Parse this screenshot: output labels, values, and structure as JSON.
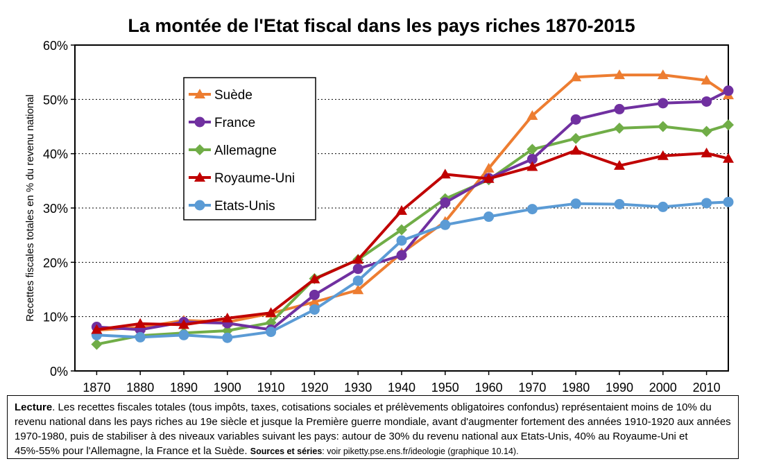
{
  "chart_data": {
    "type": "line",
    "title": "La montée de l'Etat fiscal dans les pays riches 1870-2015",
    "ylabel": "Recettes fiscales totales en % du revenu national",
    "xlabel": "",
    "xlim": [
      1870,
      2015
    ],
    "ylim": [
      0,
      60
    ],
    "xticks": [
      "1870",
      "1880",
      "1890",
      "1900",
      "1910",
      "1920",
      "1930",
      "1940",
      "1950",
      "1960",
      "1970",
      "1980",
      "1990",
      "2000",
      "2010"
    ],
    "yticks": [
      "0%",
      "10%",
      "20%",
      "30%",
      "40%",
      "50%",
      "60%"
    ],
    "grid": "horizontal",
    "legend_position": "upper-left (inside plot)",
    "series": [
      {
        "name": "Suède",
        "color": "#ED7D31",
        "marker": "triangle",
        "points": [
          [
            1870,
            7.5
          ],
          [
            1880,
            8.0
          ],
          [
            1890,
            9.3
          ],
          [
            1900,
            9.0
          ],
          [
            1910,
            10.6
          ],
          [
            1920,
            12.7
          ],
          [
            1930,
            14.9
          ],
          [
            1940,
            21.7
          ],
          [
            1950,
            27.5
          ],
          [
            1960,
            37.3
          ],
          [
            1970,
            47.0
          ],
          [
            1980,
            54.1
          ],
          [
            1990,
            54.5
          ],
          [
            2000,
            54.5
          ],
          [
            2010,
            53.5
          ],
          [
            2015,
            50.8
          ]
        ]
      },
      {
        "name": "France",
        "color": "#7030A0",
        "marker": "circle",
        "points": [
          [
            1870,
            8.1
          ],
          [
            1880,
            7.6
          ],
          [
            1890,
            9.0
          ],
          [
            1900,
            8.8
          ],
          [
            1910,
            7.6
          ],
          [
            1920,
            14.0
          ],
          [
            1930,
            18.8
          ],
          [
            1940,
            21.3
          ],
          [
            1950,
            31.0
          ],
          [
            1960,
            35.5
          ],
          [
            1970,
            39.0
          ],
          [
            1980,
            46.3
          ],
          [
            1990,
            48.2
          ],
          [
            2000,
            49.3
          ],
          [
            2010,
            49.6
          ],
          [
            2015,
            51.6
          ]
        ]
      },
      {
        "name": "Allemagne",
        "color": "#70AD47",
        "marker": "diamond",
        "points": [
          [
            1870,
            4.9
          ],
          [
            1880,
            6.5
          ],
          [
            1890,
            7.0
          ],
          [
            1900,
            7.4
          ],
          [
            1910,
            8.9
          ],
          [
            1920,
            17.0
          ],
          [
            1930,
            20.5
          ],
          [
            1940,
            26.0
          ],
          [
            1950,
            31.7
          ],
          [
            1960,
            35.2
          ],
          [
            1970,
            40.8
          ],
          [
            1980,
            42.8
          ],
          [
            1990,
            44.7
          ],
          [
            2000,
            45.0
          ],
          [
            2010,
            44.1
          ],
          [
            2015,
            45.3
          ]
        ]
      },
      {
        "name": "Royaume-Uni",
        "color": "#C00000",
        "marker": "triangle",
        "points": [
          [
            1870,
            7.6
          ],
          [
            1880,
            8.7
          ],
          [
            1890,
            8.5
          ],
          [
            1900,
            9.7
          ],
          [
            1910,
            10.7
          ],
          [
            1920,
            16.9
          ],
          [
            1930,
            20.5
          ],
          [
            1940,
            29.5
          ],
          [
            1950,
            36.2
          ],
          [
            1960,
            35.4
          ],
          [
            1970,
            37.6
          ],
          [
            1980,
            40.6
          ],
          [
            1990,
            37.8
          ],
          [
            2000,
            39.6
          ],
          [
            2010,
            40.1
          ],
          [
            2015,
            39.1
          ]
        ]
      },
      {
        "name": "Etats-Unis",
        "color": "#5B9BD5",
        "marker": "circle",
        "points": [
          [
            1870,
            6.6
          ],
          [
            1880,
            6.2
          ],
          [
            1890,
            6.6
          ],
          [
            1900,
            6.1
          ],
          [
            1910,
            7.2
          ],
          [
            1920,
            11.3
          ],
          [
            1930,
            16.6
          ],
          [
            1940,
            24.0
          ],
          [
            1950,
            26.9
          ],
          [
            1960,
            28.4
          ],
          [
            1970,
            29.8
          ],
          [
            1980,
            30.8
          ],
          [
            1990,
            30.7
          ],
          [
            2000,
            30.2
          ],
          [
            2010,
            30.9
          ],
          [
            2015,
            31.1
          ]
        ]
      }
    ]
  },
  "caption": {
    "lead": "Lecture",
    "body": ". Les recettes fiscales totales (tous impôts, taxes, cotisations sociales et prélèvements obligatoires confondus) représentaient moins de 10% du revenu national dans les pays riches au 19e siècle et jusque la Première guerre mondiale, avant d'augmenter fortement des années 1910-1920 aux années 1970-1980, puis de stabiliser à des niveaux variables suivant les pays: autour de 30% du revenu national aux Etats-Unis, 40% au Royaume-Uni et 45%-55% pour l'Allemagne, la France et la Suède. ",
    "sources_label": "Sources et séries",
    "sources_text": ": voir piketty.pse.ens.fr/ideologie (graphique 10.14)."
  }
}
